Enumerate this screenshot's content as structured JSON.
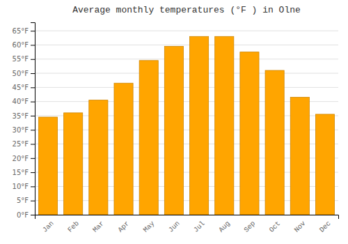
{
  "chart_data": {
    "type": "bar",
    "title": "Average monthly temperatures (°F ) in Olne",
    "categories": [
      "Jan",
      "Feb",
      "Mar",
      "Apr",
      "May",
      "Jun",
      "Jul",
      "Aug",
      "Sep",
      "Oct",
      "Nov",
      "Dec"
    ],
    "values": [
      34.5,
      36.0,
      40.5,
      46.5,
      54.5,
      59.5,
      63.0,
      63.0,
      57.5,
      51.0,
      41.5,
      35.5
    ],
    "color": "#FFA500",
    "ylim": [
      0,
      68
    ],
    "yticks": [
      {
        "value": 0,
        "label": "0°F"
      },
      {
        "value": 5,
        "label": "5°F"
      },
      {
        "value": 10,
        "label": "10°F"
      },
      {
        "value": 15,
        "label": "15°F"
      },
      {
        "value": 20,
        "label": "20°F"
      },
      {
        "value": 25,
        "label": "25°F"
      },
      {
        "value": 30,
        "label": "30°F"
      },
      {
        "value": 35,
        "label": "35°F"
      },
      {
        "value": 40,
        "label": "40°F"
      },
      {
        "value": 45,
        "label": "45°F"
      },
      {
        "value": 50,
        "label": "50°F"
      },
      {
        "value": 55,
        "label": "55°F"
      },
      {
        "value": 60,
        "label": "60°F"
      },
      {
        "value": 65,
        "label": "65°F"
      }
    ],
    "grid": true
  }
}
